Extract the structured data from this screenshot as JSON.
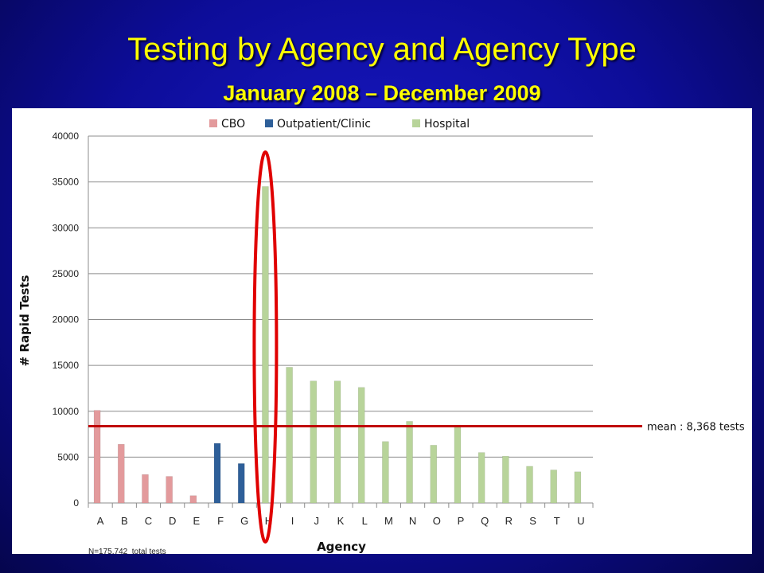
{
  "slide": {
    "title": "Testing by Agency and Agency Type",
    "subtitle": "January 2008 – December 2009"
  },
  "chart_data": {
    "type": "bar",
    "title": "",
    "xlabel": "Agency",
    "ylabel": "# Rapid Tests",
    "ylim": [
      0,
      40000
    ],
    "yticks": [
      0,
      5000,
      10000,
      15000,
      20000,
      25000,
      30000,
      35000,
      40000
    ],
    "grid": true,
    "legend_position": "top",
    "categories": [
      "A",
      "B",
      "C",
      "D",
      "E",
      "F",
      "G",
      "H",
      "I",
      "J",
      "K",
      "L",
      "M",
      "N",
      "O",
      "P",
      "Q",
      "R",
      "S",
      "T",
      "U"
    ],
    "series": [
      {
        "name": "CBO",
        "color": "#e39a9c",
        "values": [
          10100,
          6400,
          3100,
          2900,
          800,
          null,
          null,
          null,
          null,
          null,
          null,
          null,
          null,
          null,
          null,
          null,
          null,
          null,
          null,
          null,
          null
        ]
      },
      {
        "name": "Outpatient/Clinic",
        "color": "#2e5f99",
        "values": [
          null,
          null,
          null,
          null,
          null,
          6500,
          4300,
          null,
          null,
          null,
          null,
          null,
          null,
          null,
          null,
          null,
          null,
          null,
          null,
          null,
          null
        ]
      },
      {
        "name": "Hospital",
        "color": "#b8d49a",
        "values": [
          null,
          null,
          null,
          null,
          null,
          null,
          null,
          34500,
          14800,
          13300,
          13300,
          12600,
          6700,
          8900,
          6300,
          8500,
          5500,
          5100,
          4000,
          3600,
          3400
        ]
      }
    ],
    "mean": {
      "value": 8368,
      "label": "mean : 8,368 tests"
    },
    "note": "N=175,742  total tests",
    "highlight_category": "H"
  }
}
